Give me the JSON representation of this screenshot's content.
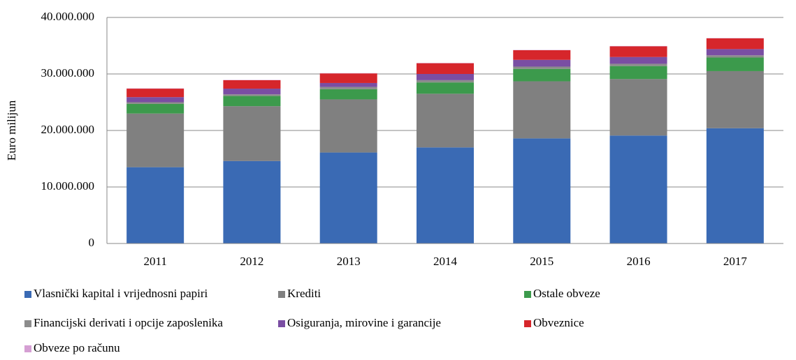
{
  "chart_data": {
    "type": "stacked_bar",
    "y_label": "Euro milijun",
    "categories": [
      "2011",
      "2012",
      "2013",
      "2014",
      "2015",
      "2016",
      "2017"
    ],
    "series": [
      {
        "name": "Vlasnički kapital i vrijednosni papiri",
        "color": "#3a6ab4",
        "values": [
          13500000,
          14600000,
          16100000,
          17000000,
          18600000,
          19100000,
          20400000
        ]
      },
      {
        "name": "Krediti",
        "color": "#808080",
        "values": [
          9500000,
          9700000,
          9400000,
          9500000,
          10100000,
          10000000,
          10100000
        ]
      },
      {
        "name": "Ostale obveze",
        "color": "#3c9a4c",
        "values": [
          1700000,
          1800000,
          1800000,
          2000000,
          2200000,
          2300000,
          2400000
        ]
      },
      {
        "name": "Financijski derivati i opcije zaposlenika",
        "color": "#8c8c8c",
        "values": [
          300000,
          300000,
          400000,
          400000,
          400000,
          400000,
          400000
        ]
      },
      {
        "name": "Osiguranja, mirovine i garancije",
        "color": "#7a4ea3",
        "values": [
          900000,
          1000000,
          700000,
          1100000,
          1200000,
          1200000,
          1100000
        ]
      },
      {
        "name": "Obveznice",
        "color": "#d6262b",
        "values": [
          1500000,
          1500000,
          1700000,
          1900000,
          1700000,
          1900000,
          1900000
        ]
      },
      {
        "name": "Obveze po računu",
        "color": "#d59fd3",
        "values": [
          50000,
          50000,
          50000,
          50000,
          50000,
          50000,
          50000
        ]
      }
    ],
    "ylim": [
      0,
      40000000
    ],
    "yticks": [
      0,
      {
        "value": 10000000,
        "label": "10.000.000"
      },
      {
        "value": 20000000,
        "label": "20.000.000"
      },
      {
        "value": 30000000,
        "label": "30.000.000"
      },
      {
        "value": 40000000,
        "label": "40.000.000"
      }
    ],
    "grid": true
  }
}
